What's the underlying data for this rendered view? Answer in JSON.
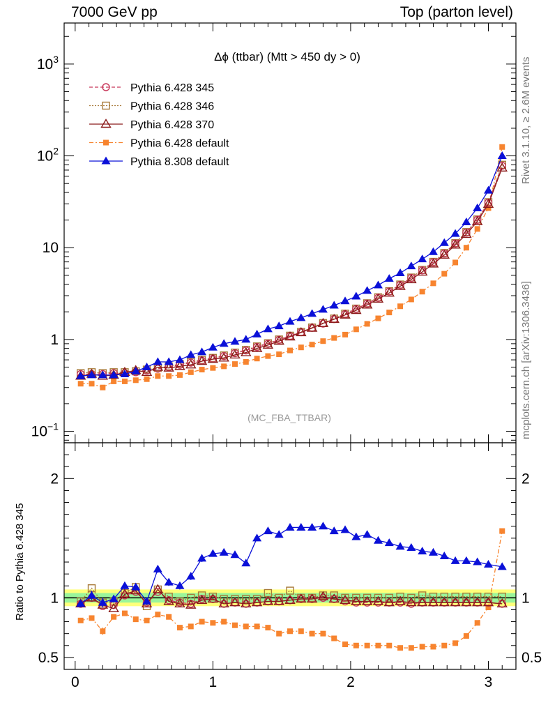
{
  "header": {
    "left": "7000 GeV pp",
    "right": "Top (parton level)"
  },
  "side_labels": {
    "version": "Rivet 3.1.10, ≥ 2.6M events",
    "source": "mcplots.cern.ch [arXiv:1306.3436]"
  },
  "chart_data": {
    "type": "line",
    "title": "Δϕ (ttbar) (Mtt > 450 dy > 0)",
    "watermark": "(MC_FBA_TTBAR)",
    "ylabel_ratio": "Ratio to Pythia 6.428 345",
    "yscale_main": "log",
    "ylim_main": [
      0.075,
      2800
    ],
    "ylim_ratio": [
      0.4,
      2.3
    ],
    "xlim": [
      -0.08,
      3.2
    ],
    "main_ytick_labels": [
      {
        "value": 0.1,
        "base": "10",
        "exp": "−1"
      },
      {
        "value": 1,
        "base": "1",
        "exp": ""
      },
      {
        "value": 10,
        "base": "10",
        "exp": ""
      },
      {
        "value": 100,
        "base": "10",
        "exp": "2"
      },
      {
        "value": 1000,
        "base": "10",
        "exp": "3"
      }
    ],
    "ratio_ytick_labels": [
      "0.5",
      "1",
      "2"
    ],
    "ratio_yticks": [
      0.5,
      1,
      2
    ],
    "xtick_labels": [
      "0",
      "1",
      "2",
      "3"
    ],
    "xticks": [
      0,
      1,
      2,
      3
    ],
    "legend_placement": "top-left",
    "band": {
      "lo": [
        0.93,
        0.96
      ],
      "hi": [
        1.07,
        1.04
      ]
    },
    "x": [
      0.04,
      0.12,
      0.2,
      0.28,
      0.36,
      0.44,
      0.52,
      0.6,
      0.68,
      0.76,
      0.84,
      0.92,
      1.0,
      1.08,
      1.16,
      1.24,
      1.32,
      1.4,
      1.48,
      1.56,
      1.64,
      1.72,
      1.8,
      1.88,
      1.96,
      2.04,
      2.12,
      2.2,
      2.28,
      2.36,
      2.44,
      2.52,
      2.6,
      2.68,
      2.76,
      2.84,
      2.92,
      3.0,
      3.1
    ],
    "series": [
      {
        "name": "Pythia 6.428 345",
        "color": "#c8375a",
        "marker": "circle-open",
        "dash": "5,3",
        "values": [
          0.42,
          0.42,
          0.42,
          0.43,
          0.43,
          0.44,
          0.46,
          0.48,
          0.5,
          0.53,
          0.56,
          0.59,
          0.62,
          0.66,
          0.71,
          0.76,
          0.83,
          0.9,
          0.99,
          1.09,
          1.2,
          1.34,
          1.49,
          1.67,
          1.89,
          2.15,
          2.46,
          2.85,
          3.33,
          3.93,
          4.68,
          5.66,
          6.94,
          8.66,
          11.1,
          14.6,
          20.1,
          31.0,
          78.0
        ],
        "ratio": [
          0.95,
          1.0,
          0.93,
          0.94,
          1.02,
          1.05,
          0.96,
          1.05,
          0.98,
          0.96,
          0.95,
          0.99,
          0.99,
          0.95,
          0.96,
          0.95,
          0.96,
          0.97,
          0.97,
          0.98,
          0.99,
          0.99,
          1.0,
          0.99,
          0.97,
          0.96,
          0.96,
          0.96,
          0.96,
          0.96,
          0.95,
          0.96,
          0.96,
          0.96,
          0.96,
          0.96,
          0.96,
          0.96,
          0.95
        ]
      },
      {
        "name": "Pythia 6.428 346",
        "color": "#a87b3a",
        "marker": "square-open",
        "dash": "2,2",
        "values": [
          0.43,
          0.44,
          0.43,
          0.44,
          0.44,
          0.45,
          0.47,
          0.49,
          0.51,
          0.54,
          0.57,
          0.6,
          0.63,
          0.67,
          0.72,
          0.77,
          0.84,
          0.91,
          1.0,
          1.1,
          1.21,
          1.35,
          1.51,
          1.69,
          1.91,
          2.17,
          2.48,
          2.88,
          3.36,
          3.97,
          4.73,
          5.72,
          7.01,
          8.75,
          11.2,
          14.8,
          20.3,
          31.3,
          80.0
        ],
        "ratio": [
          0.97,
          1.08,
          0.96,
          0.97,
          1.04,
          1.09,
          0.93,
          1.07,
          1.01,
          0.97,
          1.0,
          1.02,
          1.01,
          0.99,
          0.99,
          0.99,
          0.99,
          1.04,
          1.0,
          1.06,
          1.0,
          1.0,
          1.02,
          1.02,
          1.0,
          1.0,
          1.0,
          1.0,
          1.0,
          1.01,
          1.0,
          1.02,
          1.01,
          1.01,
          1.01,
          1.01,
          1.01,
          1.01,
          1.01
        ]
      },
      {
        "name": "Pythia 6.428 370",
        "color": "#8b1a1a",
        "marker": "triangle-open",
        "dash": "",
        "values": [
          0.4,
          0.42,
          0.4,
          0.41,
          0.44,
          0.46,
          0.44,
          0.5,
          0.49,
          0.51,
          0.53,
          0.58,
          0.61,
          0.63,
          0.68,
          0.72,
          0.8,
          0.87,
          0.96,
          1.07,
          1.19,
          1.33,
          1.5,
          1.66,
          1.85,
          2.08,
          2.38,
          2.76,
          3.21,
          3.8,
          4.5,
          5.44,
          6.67,
          8.32,
          10.7,
          14.0,
          19.3,
          29.8,
          74.0
        ],
        "ratio": [
          0.95,
          1.0,
          0.94,
          0.91,
          1.03,
          1.06,
          0.95,
          1.07,
          0.97,
          0.95,
          0.94,
          0.98,
          0.99,
          0.95,
          0.96,
          0.95,
          0.96,
          0.97,
          0.97,
          0.98,
          0.99,
          0.99,
          1.01,
          0.99,
          0.98,
          0.97,
          0.97,
          0.97,
          0.96,
          0.97,
          0.96,
          0.96,
          0.96,
          0.96,
          0.96,
          0.96,
          0.96,
          0.96,
          0.95
        ]
      },
      {
        "name": "Pythia 6.428 default",
        "color": "#f7842f",
        "marker": "square-filled",
        "dash": "6,3,2,3",
        "values": [
          0.33,
          0.33,
          0.3,
          0.35,
          0.35,
          0.36,
          0.37,
          0.4,
          0.4,
          0.41,
          0.44,
          0.47,
          0.49,
          0.51,
          0.54,
          0.57,
          0.62,
          0.66,
          0.69,
          0.76,
          0.82,
          0.88,
          0.96,
          1.04,
          1.13,
          1.29,
          1.48,
          1.7,
          1.97,
          2.3,
          2.73,
          3.32,
          4.09,
          5.2,
          6.9,
          10.0,
          16.0,
          27.0,
          125.0
        ],
        "ratio": [
          0.81,
          0.83,
          0.72,
          0.84,
          0.87,
          0.82,
          0.81,
          0.86,
          0.84,
          0.75,
          0.76,
          0.8,
          0.79,
          0.8,
          0.77,
          0.76,
          0.76,
          0.75,
          0.7,
          0.72,
          0.72,
          0.7,
          0.7,
          0.66,
          0.61,
          0.6,
          0.6,
          0.6,
          0.6,
          0.58,
          0.58,
          0.59,
          0.59,
          0.6,
          0.62,
          0.68,
          0.79,
          0.92,
          1.56
        ],
        "ratio_err": [
          0.02,
          0.02,
          0.03,
          0.02,
          0.02,
          0.02,
          0.02,
          0.02,
          0.02,
          0.02,
          0.02,
          0.02,
          0.02,
          0.01,
          0.01,
          0.01,
          0.01,
          0.01,
          0.01,
          0.01,
          0.01,
          0.01,
          0.01,
          0.01,
          0.01,
          0.01,
          0.01,
          0.01,
          0.01,
          0.01,
          0.01,
          0.01,
          0.01,
          0.01,
          0.01,
          0.01,
          0.01,
          0.01,
          0.01
        ]
      },
      {
        "name": "Pythia 8.308 default",
        "color": "#0a10d8",
        "marker": "triangle-filled",
        "dash": "",
        "values": [
          0.4,
          0.41,
          0.41,
          0.41,
          0.42,
          0.45,
          0.5,
          0.57,
          0.57,
          0.6,
          0.68,
          0.73,
          0.82,
          0.9,
          0.95,
          1.0,
          1.14,
          1.3,
          1.4,
          1.57,
          1.72,
          1.91,
          2.12,
          2.35,
          2.62,
          2.95,
          3.4,
          3.9,
          4.6,
          5.3,
          6.3,
          7.5,
          9.0,
          11.3,
          14.2,
          19.0,
          27.0,
          42.0,
          100.0
        ],
        "ratio": [
          0.95,
          1.02,
          0.96,
          0.99,
          1.1,
          1.09,
          0.97,
          1.24,
          1.13,
          1.1,
          1.18,
          1.33,
          1.37,
          1.38,
          1.36,
          1.29,
          1.5,
          1.56,
          1.53,
          1.59,
          1.59,
          1.59,
          1.6,
          1.56,
          1.57,
          1.51,
          1.53,
          1.48,
          1.46,
          1.43,
          1.42,
          1.39,
          1.38,
          1.35,
          1.31,
          1.31,
          1.3,
          1.28,
          1.26
        ],
        "ratio_err": [
          0.03,
          0.04,
          0.04,
          0.03,
          0.03,
          0.03,
          0.03,
          0.03,
          0.03,
          0.03,
          0.03,
          0.03,
          0.02,
          0.02,
          0.02,
          0.02,
          0.02,
          0.02,
          0.02,
          0.02,
          0.02,
          0.02,
          0.02,
          0.02,
          0.02,
          0.02,
          0.02,
          0.02,
          0.02,
          0.02,
          0.02,
          0.02,
          0.02,
          0.02,
          0.02,
          0.02,
          0.02,
          0.02,
          0.02
        ]
      }
    ]
  }
}
